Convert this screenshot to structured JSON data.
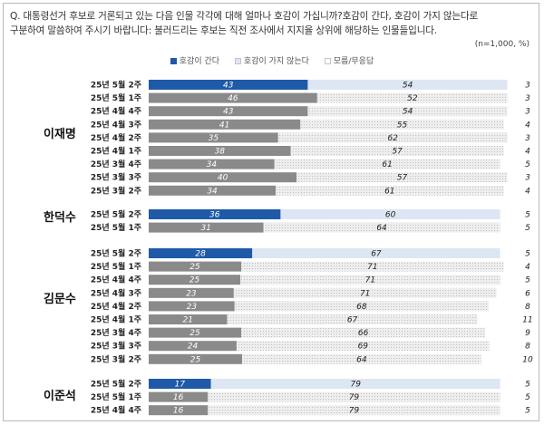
{
  "question": "Q. 대통령선거 후보로 거론되고 있는 다음 인물 각각에 대해 얼마나 호감이 가십니까?호감이 간다, 호감이 가지 않는다로\n구분하여 말씀하여 주시기 바랍니다: 불러드리는 후보는 직전 조사에서 지지율 상위에 해당하는 인물들입니다.",
  "note": "(n=1,000, %)",
  "colors": {
    "favorable_latest": "#1f5aa8",
    "favorable_past": "#8a8a8a",
    "unfavorable": "#e6e6e6",
    "unfavorable_latest": "#dde6f3",
    "unknown": "#ffffff"
  },
  "chart_data": {
    "type": "bar",
    "orientation": "horizontal",
    "stacked": true,
    "xlim": [
      0,
      100
    ],
    "legend": {
      "position": "top",
      "items": [
        "호감이 간다",
        "호감이 가지 않는다",
        "모름/무응답"
      ]
    },
    "groups": [
      {
        "candidate": "이재명",
        "rows": [
          {
            "label": "25년 5월 2주",
            "values": [
              43,
              54,
              3
            ]
          },
          {
            "label": "25년 5월 1주",
            "values": [
              46,
              52,
              3
            ]
          },
          {
            "label": "25년 4월 4주",
            "values": [
              43,
              54,
              3
            ]
          },
          {
            "label": "25년 4월 3주",
            "values": [
              41,
              55,
              4
            ]
          },
          {
            "label": "25년 4월 2주",
            "values": [
              35,
              62,
              3
            ]
          },
          {
            "label": "25년 4월 1주",
            "values": [
              38,
              57,
              4
            ]
          },
          {
            "label": "25년 3월 4주",
            "values": [
              34,
              61,
              5
            ]
          },
          {
            "label": "25년 3월 3주",
            "values": [
              40,
              57,
              3
            ]
          },
          {
            "label": "25년 3월 2주",
            "values": [
              34,
              61,
              4
            ]
          }
        ]
      },
      {
        "candidate": "한덕수",
        "rows": [
          {
            "label": "25년 5월 2주",
            "values": [
              36,
              60,
              5
            ]
          },
          {
            "label": "25년 5월 1주",
            "values": [
              31,
              64,
              5
            ]
          }
        ]
      },
      {
        "candidate": "김문수",
        "rows": [
          {
            "label": "25년 5월 2주",
            "values": [
              28,
              67,
              5
            ]
          },
          {
            "label": "25년 5월 1주",
            "values": [
              25,
              71,
              4
            ]
          },
          {
            "label": "25년 4월 4주",
            "values": [
              25,
              71,
              5
            ]
          },
          {
            "label": "25년 4월 3주",
            "values": [
              23,
              71,
              6
            ]
          },
          {
            "label": "25년 4월 2주",
            "values": [
              23,
              68,
              8
            ]
          },
          {
            "label": "25년 4월 1주",
            "values": [
              21,
              67,
              11
            ]
          },
          {
            "label": "25년 3월 4주",
            "values": [
              25,
              66,
              9
            ]
          },
          {
            "label": "25년 3월 3주",
            "values": [
              24,
              69,
              8
            ]
          },
          {
            "label": "25년 3월 2주",
            "values": [
              25,
              64,
              10
            ]
          }
        ]
      },
      {
        "candidate": "이준석",
        "rows": [
          {
            "label": "25년 5월 2주",
            "values": [
              17,
              79,
              5
            ]
          },
          {
            "label": "25년 5월 1주",
            "values": [
              16,
              79,
              5
            ]
          },
          {
            "label": "25년 4월 4주",
            "values": [
              16,
              79,
              5
            ]
          }
        ]
      }
    ]
  }
}
